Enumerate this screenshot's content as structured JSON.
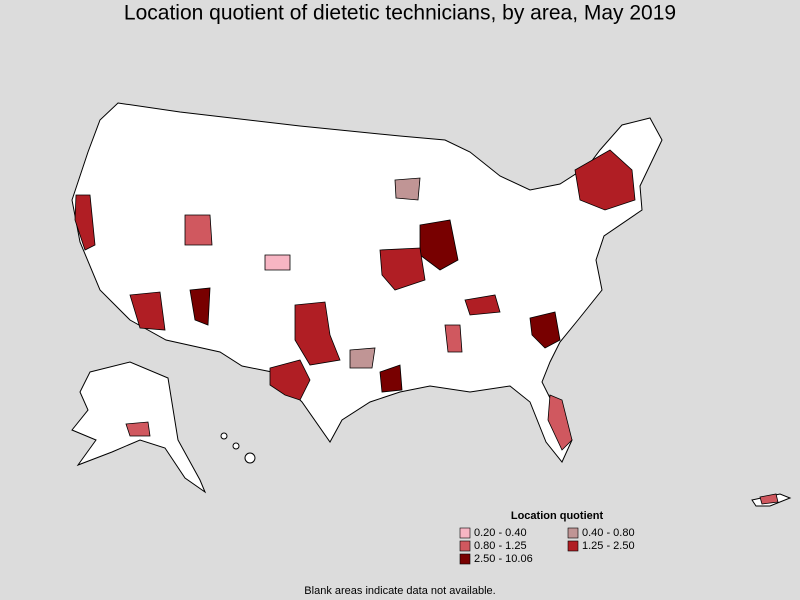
{
  "title": "Location quotient of dietetic technicians, by area, May 2019",
  "legend": {
    "title": "Location quotient",
    "items": [
      {
        "label": "0.20 - 0.40",
        "color": "#f7b5c3"
      },
      {
        "label": "0.40 - 0.80",
        "color": "#c09595"
      },
      {
        "label": "0.80 - 1.25",
        "color": "#d0585f"
      },
      {
        "label": "1.25 - 2.50",
        "color": "#b01e24"
      },
      {
        "label": "2.50 - 10.06",
        "color": "#780000"
      }
    ]
  },
  "note": "Blank areas indicate data not available."
}
